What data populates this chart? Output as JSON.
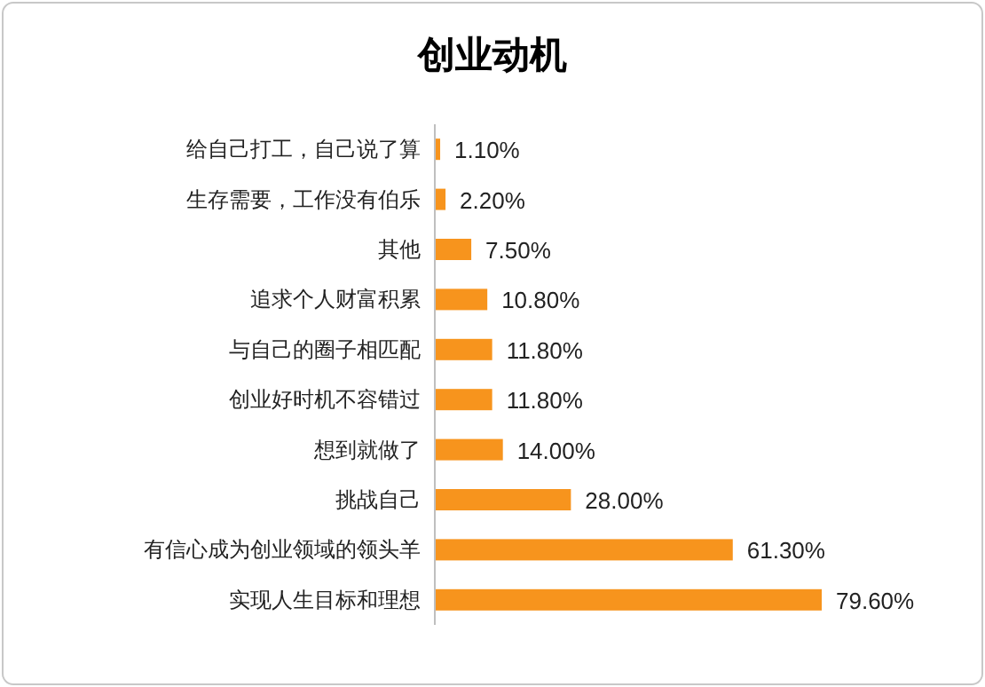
{
  "chart_data": {
    "type": "bar",
    "orientation": "horizontal",
    "title": "创业动机",
    "categories": [
      "给自己打工，自己说了算",
      "生存需要，工作没有伯乐",
      "其他",
      "追求个人财富积累",
      "与自己的圈子相匹配",
      "创业好时机不容错过",
      "想到就做了",
      "挑战自己",
      "有信心成为创业领域的领头羊",
      "实现人生目标和理想"
    ],
    "values": [
      1.1,
      2.2,
      7.5,
      10.8,
      11.8,
      11.8,
      14.0,
      28.0,
      61.3,
      79.6
    ],
    "value_labels": [
      "1.10%",
      "2.20%",
      "7.50%",
      "10.80%",
      "11.80%",
      "11.80%",
      "14.00%",
      "28.00%",
      "61.30%",
      "79.60%"
    ],
    "color": "#f7941d"
  }
}
